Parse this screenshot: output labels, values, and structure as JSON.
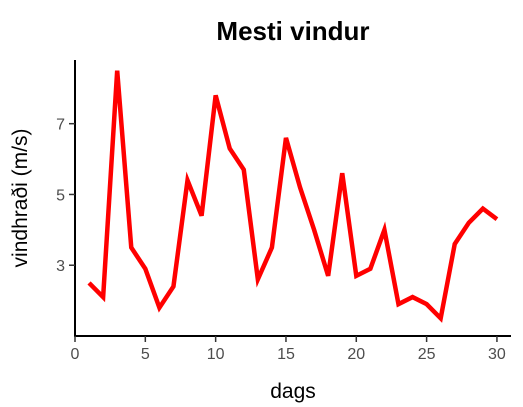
{
  "chart_data": {
    "type": "line",
    "title": "Mesti vindur",
    "xlabel": "dags",
    "ylabel": "vindhraði (m/s)",
    "xlim": [
      0,
      31
    ],
    "ylim": [
      1.0,
      8.8
    ],
    "x_ticks": [
      0,
      5,
      10,
      15,
      20,
      25,
      30
    ],
    "y_ticks": [
      3,
      5,
      7
    ],
    "grid": false,
    "series": [
      {
        "color": "#ff0000",
        "x": [
          1,
          2,
          3,
          4,
          5,
          6,
          7,
          8,
          9,
          10,
          11,
          12,
          13,
          14,
          15,
          16,
          17,
          18,
          19,
          20,
          21,
          22,
          23,
          24,
          25,
          26,
          27,
          28,
          29,
          30
        ],
        "y": [
          2.5,
          2.1,
          8.5,
          3.5,
          2.9,
          1.8,
          2.4,
          5.4,
          4.4,
          7.8,
          6.3,
          5.7,
          2.6,
          3.5,
          6.6,
          5.2,
          4.0,
          2.7,
          5.6,
          2.7,
          2.9,
          4.0,
          1.9,
          2.1,
          1.9,
          1.5,
          3.6,
          4.2,
          4.6,
          4.3
        ]
      }
    ]
  }
}
